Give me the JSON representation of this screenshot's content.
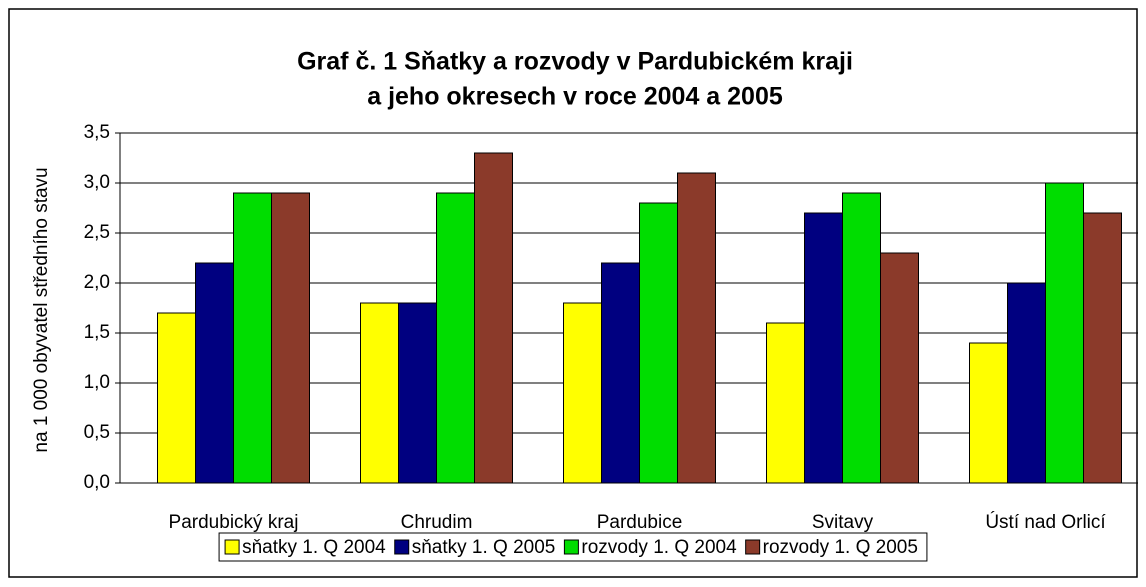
{
  "chart_data": {
    "type": "bar",
    "title": [
      "Graf č. 1 Sňatky a rozvody v Pardubickém kraji",
      "a jeho okresech v roce 2004 a 2005"
    ],
    "ylabel": "na 1 000 obyvatel středního stavu",
    "categories": [
      "Pardubický kraj",
      "Chrudim",
      "Pardubice",
      "Svitavy",
      "Ústí nad Orlicí"
    ],
    "series": [
      {
        "name": "sňatky 1. Q 2004",
        "color": "#ffff00",
        "values": [
          1.7,
          1.8,
          1.8,
          1.6,
          1.4
        ]
      },
      {
        "name": "sňatky 1. Q 2005",
        "color": "#000080",
        "values": [
          2.2,
          1.8,
          2.2,
          2.7,
          2.0
        ]
      },
      {
        "name": "rozvody 1. Q 2004",
        "color": "#00dd00",
        "values": [
          2.9,
          2.9,
          2.8,
          2.9,
          3.0
        ]
      },
      {
        "name": "rozvody 1. Q 2005",
        "color": "#8b3a2a",
        "values": [
          2.9,
          3.3,
          3.1,
          2.3,
          2.7
        ]
      }
    ],
    "ylim": [
      0,
      3.5
    ],
    "yticks": [
      {
        "value": 0,
        "label": "0,0"
      },
      {
        "value": 0.5,
        "label": "0,5"
      },
      {
        "value": 1,
        "label": "1,0"
      },
      {
        "value": 1.5,
        "label": "1,5"
      },
      {
        "value": 2,
        "label": "2,0"
      },
      {
        "value": 2.5,
        "label": "2,5"
      },
      {
        "value": 3,
        "label": "3,0"
      },
      {
        "value": 3.5,
        "label": "3,5"
      }
    ],
    "grid": true,
    "legend": "bottom"
  }
}
